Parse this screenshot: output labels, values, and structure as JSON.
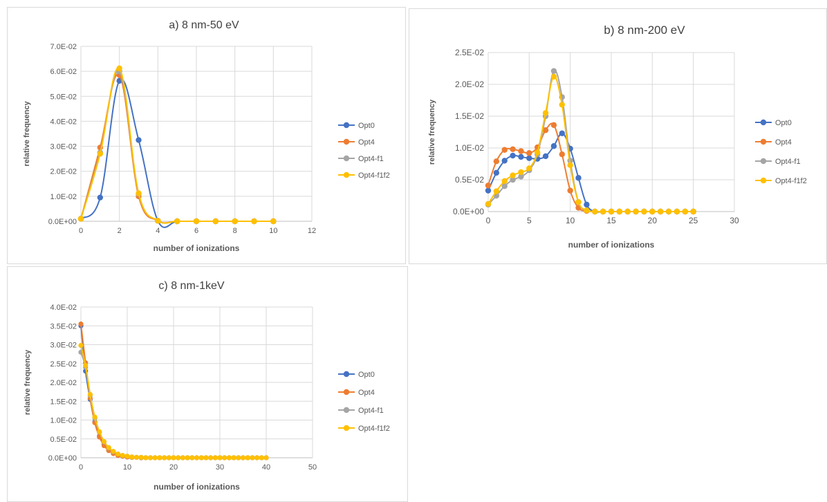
{
  "chart_data": [
    {
      "type": "line",
      "title": "a) 8 nm-50 eV",
      "xlabel": "number of ionizations",
      "ylabel": "relative frequency",
      "xlim": [
        0,
        12
      ],
      "ylim": [
        0,
        0.07
      ],
      "xticks": [
        "0",
        "2",
        "4",
        "6",
        "8",
        "10",
        "12"
      ],
      "yticks": [
        "0.0E+00",
        "1.0E-02",
        "2.0E-02",
        "3.0E-02",
        "4.0E-02",
        "5.0E-02",
        "6.0E-02",
        "7.0E-02"
      ],
      "grid": true,
      "legend_position": "right",
      "x": [
        0,
        1,
        2,
        3,
        4,
        5,
        6,
        7,
        8,
        9,
        10
      ],
      "series": [
        {
          "name": "Opt0",
          "color": "#4472c4",
          "values": [
            0.001,
            0.0095,
            0.0562,
            0.0325,
            0.0002,
            0,
            0,
            0,
            0,
            0,
            0
          ]
        },
        {
          "name": "Opt4",
          "color": "#ed7d31",
          "values": [
            0.001,
            0.0295,
            0.0585,
            0.01,
            0.0002,
            0,
            0,
            0,
            0,
            0,
            0
          ]
        },
        {
          "name": "Opt4-f1",
          "color": "#a5a5a5",
          "values": [
            0.001,
            0.0275,
            0.06,
            0.011,
            0.0002,
            0,
            0,
            0,
            0,
            0,
            0
          ]
        },
        {
          "name": "Opt4-f1f2",
          "color": "#ffc000",
          "values": [
            0.001,
            0.027,
            0.0612,
            0.0112,
            0.0002,
            0,
            0,
            0,
            0,
            0,
            0
          ]
        }
      ]
    },
    {
      "type": "line",
      "title": "b) 8 nm-200 eV",
      "xlabel": "number of ionizations",
      "ylabel": "relative frequency",
      "xlim": [
        0,
        30
      ],
      "ylim": [
        0,
        0.025
      ],
      "xticks": [
        "0",
        "5",
        "10",
        "15",
        "20",
        "25",
        "30"
      ],
      "yticks": [
        "0.0E+00",
        "0.5E-02",
        "1.0E-02",
        "1.5E-02",
        "2.0E-02",
        "2.5E-02"
      ],
      "grid": true,
      "legend_position": "right",
      "x": [
        0,
        1,
        2,
        3,
        4,
        5,
        6,
        7,
        8,
        9,
        10,
        11,
        12,
        13,
        14,
        15,
        16,
        17,
        18,
        19,
        20,
        21,
        22,
        23,
        24,
        25
      ],
      "series": [
        {
          "name": "Opt0",
          "color": "#4472c4",
          "values": [
            0.0033,
            0.0061,
            0.008,
            0.0088,
            0.0086,
            0.0084,
            0.0083,
            0.0087,
            0.0103,
            0.0123,
            0.0099,
            0.0053,
            0.0011,
            0,
            0,
            0,
            0,
            0,
            0,
            0,
            0,
            0,
            0,
            0,
            0,
            0
          ]
        },
        {
          "name": "Opt4",
          "color": "#ed7d31",
          "values": [
            0.0041,
            0.0079,
            0.0097,
            0.0098,
            0.0095,
            0.0092,
            0.0101,
            0.0128,
            0.0136,
            0.009,
            0.0033,
            0.0006,
            0.0001,
            0,
            0,
            0,
            0,
            0,
            0,
            0,
            0,
            0,
            0,
            0,
            0,
            0
          ]
        },
        {
          "name": "Opt4-f1",
          "color": "#a5a5a5",
          "values": [
            0.0011,
            0.0025,
            0.004,
            0.005,
            0.0055,
            0.0065,
            0.009,
            0.015,
            0.0221,
            0.018,
            0.008,
            0.0015,
            0.0002,
            0,
            0,
            0,
            0,
            0,
            0,
            0,
            0,
            0,
            0,
            0,
            0,
            0
          ]
        },
        {
          "name": "Opt4-f1f2",
          "color": "#ffc000",
          "values": [
            0.0012,
            0.0032,
            0.0048,
            0.0057,
            0.0062,
            0.0068,
            0.0093,
            0.0155,
            0.0212,
            0.0168,
            0.0073,
            0.0015,
            0.0002,
            0,
            0,
            0,
            0,
            0,
            0,
            0,
            0,
            0,
            0,
            0,
            0,
            0
          ]
        }
      ]
    },
    {
      "type": "line",
      "title": "c) 8 nm-1keV",
      "xlabel": "number of ionizations",
      "ylabel": "relative frequency",
      "xlim": [
        0,
        50
      ],
      "ylim": [
        0,
        0.04
      ],
      "xticks": [
        "0",
        "10",
        "20",
        "30",
        "40",
        "50"
      ],
      "yticks": [
        "0.0E+00",
        "0.5E-02",
        "1.0E-02",
        "1.5E-02",
        "2.0E-02",
        "2.5E-02",
        "3.0E-02",
        "3.5E-02",
        "4.0E-02"
      ],
      "grid": true,
      "legend_position": "right",
      "x": [
        0,
        1,
        2,
        3,
        4,
        5,
        6,
        7,
        8,
        9,
        10,
        11,
        12,
        13,
        14,
        15,
        16,
        17,
        18,
        19,
        20,
        21,
        22,
        23,
        24,
        25,
        26,
        27,
        28,
        29,
        30,
        31,
        32,
        33,
        34,
        35,
        36,
        37,
        38,
        39,
        40
      ],
      "series": [
        {
          "name": "Opt0",
          "color": "#4472c4",
          "values": [
            0.035,
            0.023,
            0.0155,
            0.0095,
            0.0057,
            0.0035,
            0.002,
            0.0012,
            0.0007,
            0.0004,
            0.0002,
            0.0001,
            0.0001,
            0,
            0,
            0,
            0,
            0,
            0,
            0,
            0,
            0,
            0,
            0,
            0,
            0,
            0,
            0,
            0,
            0,
            0,
            0,
            0,
            0,
            0,
            0,
            0,
            0,
            0,
            0,
            0
          ]
        },
        {
          "name": "Opt4",
          "color": "#ed7d31",
          "values": [
            0.0355,
            0.0252,
            0.0158,
            0.0093,
            0.0055,
            0.0032,
            0.0019,
            0.0011,
            0.0006,
            0.0004,
            0.0002,
            0.0001,
            0.0001,
            0,
            0,
            0,
            0,
            0,
            0,
            0,
            0,
            0,
            0,
            0,
            0,
            0,
            0,
            0,
            0,
            0,
            0,
            0,
            0,
            0,
            0,
            0,
            0,
            0,
            0,
            0,
            0
          ]
        },
        {
          "name": "Opt4-f1",
          "color": "#a5a5a5",
          "values": [
            0.028,
            0.024,
            0.0165,
            0.0105,
            0.0068,
            0.0042,
            0.0026,
            0.0016,
            0.001,
            0.0006,
            0.0004,
            0.0002,
            0.0001,
            0.0001,
            0,
            0,
            0,
            0,
            0,
            0,
            0,
            0,
            0,
            0,
            0,
            0,
            0,
            0,
            0,
            0,
            0,
            0,
            0,
            0,
            0,
            0,
            0,
            0,
            0,
            0,
            0
          ]
        },
        {
          "name": "Opt4-f1f2",
          "color": "#ffc000",
          "values": [
            0.0298,
            0.0245,
            0.0168,
            0.0108,
            0.0069,
            0.0043,
            0.0027,
            0.0017,
            0.001,
            0.0006,
            0.0004,
            0.0002,
            0.0001,
            0.0001,
            0,
            0,
            0,
            0,
            0,
            0,
            0,
            0,
            0,
            0,
            0,
            0,
            0,
            0,
            0,
            0,
            0,
            0,
            0,
            0,
            0,
            0,
            0,
            0,
            0,
            0,
            0
          ]
        }
      ]
    }
  ]
}
